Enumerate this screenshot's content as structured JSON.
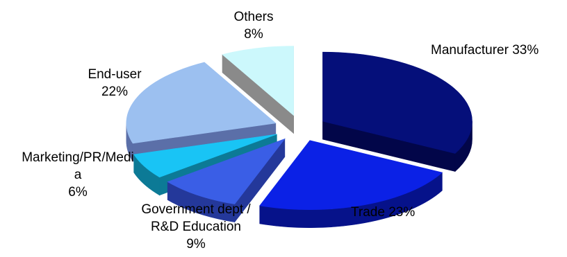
{
  "chart_data": {
    "type": "pie",
    "slices": [
      {
        "name": "Manufacturer",
        "value": 33,
        "label_lines": [
          "Manufacturer 33%"
        ],
        "colors": {
          "top": "#050f7a",
          "side": "#020649"
        }
      },
      {
        "name": "Trade",
        "value": 23,
        "label_lines": [
          "Trade 23%"
        ],
        "colors": {
          "top": "#0b21e6",
          "side": "#06128a"
        }
      },
      {
        "name": "Government dept / R&D Education",
        "value": 9,
        "label_lines": [
          "Government dept /",
          "R&D Education",
          "9%"
        ],
        "colors": {
          "top": "#3a5ee6",
          "side": "#24389a"
        }
      },
      {
        "name": "Marketing/PR/Media",
        "value": 6,
        "label_lines": [
          "Marketing/PR/Medi",
          "a",
          "6%"
        ],
        "colors": {
          "top": "#19c4f5",
          "side": "#0c7a96"
        }
      },
      {
        "name": "End-user",
        "value": 22,
        "label_lines": [
          "End-user",
          "22%"
        ],
        "colors": {
          "top": "#9cc0f0",
          "side": "#5b6fa8"
        }
      },
      {
        "name": "Others",
        "value": 8,
        "label_lines": [
          "Others",
          "8%"
        ],
        "colors": {
          "top": "#ccf8fc",
          "side": "#8a8a8a"
        }
      }
    ],
    "exploded": true,
    "three_d": true,
    "legend": "none"
  }
}
